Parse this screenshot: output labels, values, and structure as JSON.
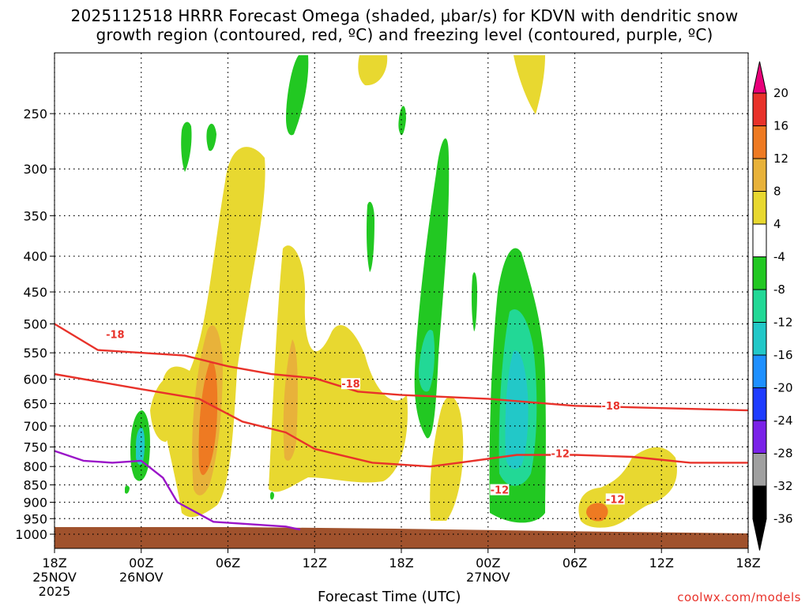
{
  "title_line1": "2025112518 HRRR Forecast Omega (shaded, μbar/s) for KDVN with dendritic snow",
  "title_line2": "growth region (contoured, red, ºC) and freezing level (contoured, purple, ºC)",
  "chart_data": {
    "type": "heatmap",
    "station": "KDVN",
    "model": "HRRR",
    "init": "2025112518",
    "xlabel": "Forecast Time (UTC)",
    "ylabel": "",
    "credit": "coolwx.com/models",
    "y_ticks": [
      250,
      300,
      350,
      400,
      450,
      500,
      550,
      600,
      650,
      700,
      750,
      800,
      850,
      900,
      950,
      1000
    ],
    "x_ticks": [
      {
        "hour": 0,
        "label": "18Z",
        "sub": "25NOV",
        "sub2": "2025"
      },
      {
        "hour": 6,
        "label": "00Z",
        "sub": "26NOV"
      },
      {
        "hour": 12,
        "label": "06Z"
      },
      {
        "hour": 18,
        "label": "12Z"
      },
      {
        "hour": 24,
        "label": "18Z"
      },
      {
        "hour": 30,
        "label": "00Z",
        "sub": "27NOV"
      },
      {
        "hour": 36,
        "label": "06Z"
      },
      {
        "hour": 42,
        "label": "12Z"
      },
      {
        "hour": 48,
        "label": "18Z"
      }
    ],
    "colorbar": {
      "labels": [
        "20",
        "16",
        "12",
        "8",
        "4",
        "-4",
        "-8",
        "-12",
        "-16",
        "-20",
        "-24",
        "-28",
        "-32",
        "-36"
      ],
      "colors": [
        "#e8007a",
        "#e8322a",
        "#ee7a22",
        "#e8b23a",
        "#e8d830",
        "#ffffff",
        "#22c822",
        "#22d896",
        "#22c8c8",
        "#1e90ff",
        "#1e3cff",
        "#7a22e8",
        "#a0a0a0",
        "#000000"
      ]
    },
    "contour_labels": {
      "dgz_top": "-18",
      "dgz_bottom": "-12"
    },
    "series": [
      {
        "name": "-18C isotherm",
        "color": "#e8322a",
        "points": [
          [
            0,
            500
          ],
          [
            3,
            545
          ],
          [
            9,
            555
          ],
          [
            12,
            575
          ],
          [
            15,
            590
          ],
          [
            18,
            598
          ],
          [
            21,
            625
          ],
          [
            24,
            632
          ],
          [
            30,
            640
          ],
          [
            36,
            655
          ],
          [
            42,
            660
          ],
          [
            48,
            665
          ]
        ]
      },
      {
        "name": "-12C isotherm",
        "color": "#e8322a",
        "points": [
          [
            0,
            590
          ],
          [
            6,
            620
          ],
          [
            10,
            640
          ],
          [
            13,
            690
          ],
          [
            16,
            715
          ],
          [
            18,
            755
          ],
          [
            22,
            790
          ],
          [
            26,
            800
          ],
          [
            28,
            790
          ],
          [
            30,
            780
          ],
          [
            32,
            770
          ],
          [
            36,
            770
          ],
          [
            40,
            775
          ],
          [
            44,
            790
          ],
          [
            48,
            790
          ]
        ]
      },
      {
        "name": "freezing level",
        "color": "#9a14c8",
        "points": [
          [
            0,
            760
          ],
          [
            2,
            785
          ],
          [
            4,
            790
          ],
          [
            6,
            785
          ],
          [
            7.5,
            830
          ],
          [
            8.5,
            900
          ],
          [
            11,
            960
          ],
          [
            16,
            975
          ],
          [
            17,
            985
          ]
        ]
      }
    ],
    "shading_units": "μbar/s"
  }
}
